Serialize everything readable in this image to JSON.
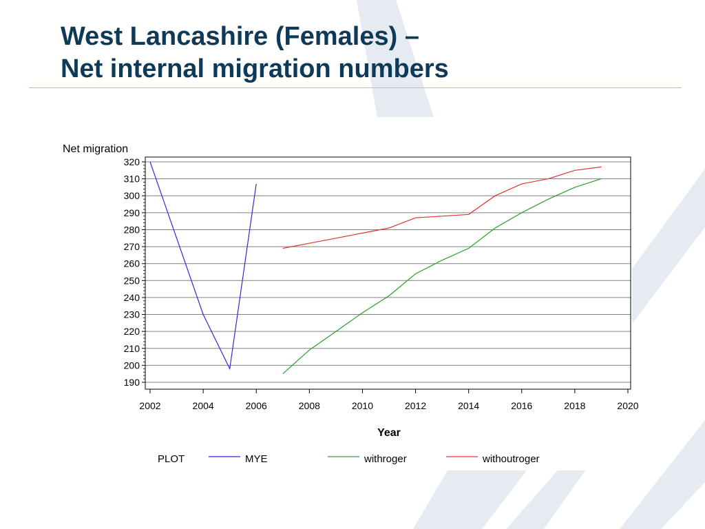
{
  "slide": {
    "title_line1": "West Lancashire (Females) –",
    "title_line2": "Net internal migration numbers"
  },
  "colors": {
    "title": "#0e3a57",
    "rule": "#b8c98a",
    "watermark": "#e6ebf1",
    "grid": "#808080",
    "MYE": "#2b2bd6",
    "withroger": "#28a028",
    "withoutroger": "#e03030"
  },
  "chart_data": {
    "type": "line",
    "xlabel": "Year",
    "ylabel": "Net migration",
    "xlim": [
      2002,
      2020
    ],
    "ylim": [
      190,
      320
    ],
    "x_ticks": [
      2002,
      2004,
      2006,
      2008,
      2010,
      2012,
      2014,
      2016,
      2018,
      2020
    ],
    "y_ticks": [
      190,
      200,
      210,
      220,
      230,
      240,
      250,
      260,
      270,
      280,
      290,
      300,
      310,
      320
    ],
    "grid": true,
    "legend_position": "bottom",
    "legend_title": "PLOT",
    "series": [
      {
        "name": "MYE",
        "color": "#2b2bd6",
        "points": [
          [
            2002,
            320
          ],
          [
            2003,
            275
          ],
          [
            2004,
            230
          ],
          [
            2005,
            198
          ],
          [
            2006,
            307
          ]
        ]
      },
      {
        "name": "withroger",
        "color": "#28a028",
        "points": [
          [
            2007,
            195
          ],
          [
            2008,
            209
          ],
          [
            2009,
            220
          ],
          [
            2010,
            231
          ],
          [
            2011,
            241
          ],
          [
            2012,
            254
          ],
          [
            2013,
            262
          ],
          [
            2014,
            269
          ],
          [
            2015,
            281
          ],
          [
            2016,
            290
          ],
          [
            2017,
            298
          ],
          [
            2018,
            305
          ],
          [
            2019,
            310
          ]
        ]
      },
      {
        "name": "withoutroger",
        "color": "#e03030",
        "points": [
          [
            2007,
            269
          ],
          [
            2008,
            272
          ],
          [
            2009,
            275
          ],
          [
            2010,
            278
          ],
          [
            2011,
            281
          ],
          [
            2012,
            287
          ],
          [
            2013,
            288
          ],
          [
            2014,
            289
          ],
          [
            2015,
            300
          ],
          [
            2016,
            307
          ],
          [
            2017,
            310
          ],
          [
            2018,
            315
          ],
          [
            2019,
            317
          ]
        ]
      }
    ]
  }
}
